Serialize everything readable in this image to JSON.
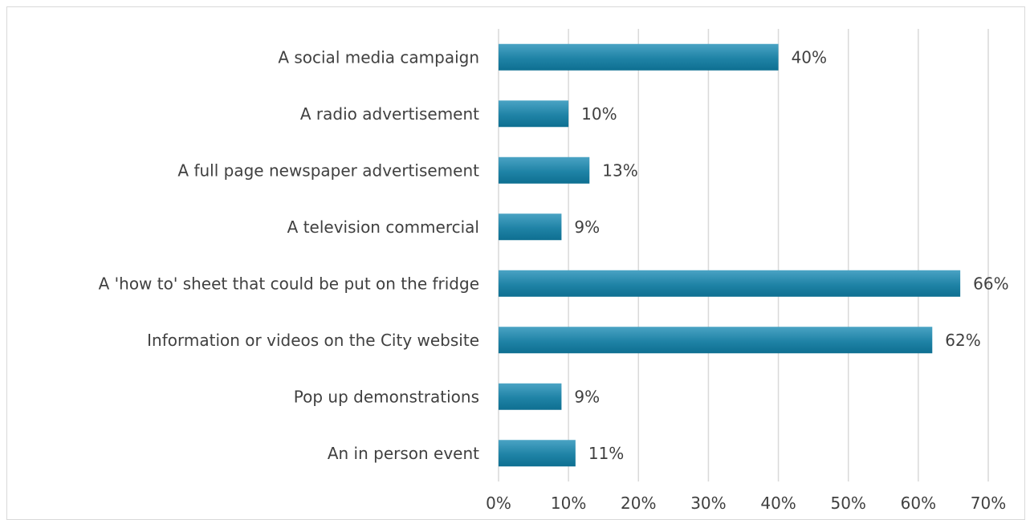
{
  "chart_data": {
    "type": "bar",
    "orientation": "horizontal",
    "title": "",
    "xlabel": "",
    "ylabel": "",
    "categories": [
      "A social media campaign",
      "A radio advertisement",
      "A full page newspaper advertisement",
      "A television commercial",
      "A 'how to' sheet that could be put on the fridge",
      "Information or videos on the City website",
      "Pop up demonstrations",
      "An in person event"
    ],
    "values": [
      40,
      10,
      13,
      9,
      66,
      62,
      9,
      11
    ],
    "data_labels": [
      "40%",
      "10%",
      "13%",
      "9%",
      "66%",
      "62%",
      "9%",
      "11%"
    ],
    "xlim": [
      0,
      70
    ],
    "ticks": [
      0,
      10,
      20,
      30,
      40,
      50,
      60,
      70
    ],
    "tick_labels": [
      "0%",
      "10%",
      "20%",
      "30%",
      "40%",
      "50%",
      "60%",
      "70%"
    ],
    "grid": "vertical",
    "legend": "none",
    "bar_color": "#1f83a6",
    "bar_color_dark": "#0e6f91",
    "grid_color": "#d9d9d9",
    "text_color": "#404040"
  }
}
